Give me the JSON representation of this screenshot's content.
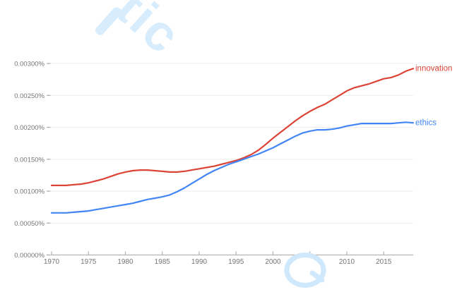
{
  "watermark": {
    "top_text": "tic",
    "color": "#d7edfd",
    "q_stroke_color": "#cfe8fb",
    "q_fill_color": "#ffffff"
  },
  "chart_data": {
    "type": "line",
    "title": "",
    "xlabel": "",
    "ylabel": "",
    "xlim": [
      1970,
      2019
    ],
    "ylim": [
      0,
      0.0031
    ],
    "grid": true,
    "legend_position": "end-of-line labels",
    "x_ticks": [
      "1970",
      "1975",
      "1980",
      "1985",
      "1990",
      "1995",
      "2000",
      "2005",
      "2010",
      "2015"
    ],
    "x_tick_years": [
      1970,
      1975,
      1980,
      1985,
      1990,
      1995,
      2000,
      2005,
      2010,
      2015
    ],
    "y_ticks": [
      "0.00000%",
      "0.00050%",
      "0.00100%",
      "0.00150%",
      "0.00200%",
      "0.00250%",
      "0.00300%"
    ],
    "y_tick_values": [
      0,
      0.0005,
      0.001,
      0.0015,
      0.002,
      0.0025,
      0.003
    ],
    "x": [
      1970,
      1971,
      1972,
      1973,
      1974,
      1975,
      1976,
      1977,
      1978,
      1979,
      1980,
      1981,
      1982,
      1983,
      1984,
      1985,
      1986,
      1987,
      1988,
      1989,
      1990,
      1991,
      1992,
      1993,
      1994,
      1995,
      1996,
      1997,
      1998,
      1999,
      2000,
      2001,
      2002,
      2003,
      2004,
      2005,
      2006,
      2007,
      2008,
      2009,
      2010,
      2011,
      2012,
      2013,
      2014,
      2015,
      2016,
      2017,
      2018,
      2019
    ],
    "series": [
      {
        "name": "innovation",
        "color": "#db4437",
        "values": [
          0.00109,
          0.00109,
          0.00109,
          0.0011,
          0.00111,
          0.00113,
          0.00116,
          0.00119,
          0.00123,
          0.00127,
          0.0013,
          0.00132,
          0.00133,
          0.00133,
          0.00132,
          0.00131,
          0.0013,
          0.0013,
          0.00131,
          0.00133,
          0.00135,
          0.00137,
          0.00139,
          0.00142,
          0.00145,
          0.00148,
          0.00152,
          0.00157,
          0.00164,
          0.00173,
          0.00183,
          0.00192,
          0.00201,
          0.0021,
          0.00218,
          0.00225,
          0.00231,
          0.00236,
          0.00243,
          0.0025,
          0.00257,
          0.00262,
          0.00265,
          0.00268,
          0.00272,
          0.00276,
          0.00278,
          0.00282,
          0.00288,
          0.00292
        ]
      },
      {
        "name": "ethics",
        "color": "#4285f4",
        "values": [
          0.00066,
          0.00066,
          0.00066,
          0.00067,
          0.00068,
          0.00069,
          0.00071,
          0.00073,
          0.00075,
          0.00077,
          0.00079,
          0.00081,
          0.00084,
          0.00087,
          0.00089,
          0.00091,
          0.00094,
          0.00099,
          0.00105,
          0.00112,
          0.00119,
          0.00126,
          0.00132,
          0.00137,
          0.00142,
          0.00146,
          0.0015,
          0.00154,
          0.00158,
          0.00163,
          0.00168,
          0.00174,
          0.0018,
          0.00186,
          0.00191,
          0.00194,
          0.00196,
          0.00196,
          0.00197,
          0.00199,
          0.00202,
          0.00204,
          0.00206,
          0.00206,
          0.00206,
          0.00206,
          0.00206,
          0.00207,
          0.00208,
          0.00207
        ]
      }
    ]
  },
  "colors": {
    "gridline": "#ececec",
    "axis": "#b3b3b3",
    "tick": "#a8a8a8",
    "axis_label": "#757575"
  }
}
